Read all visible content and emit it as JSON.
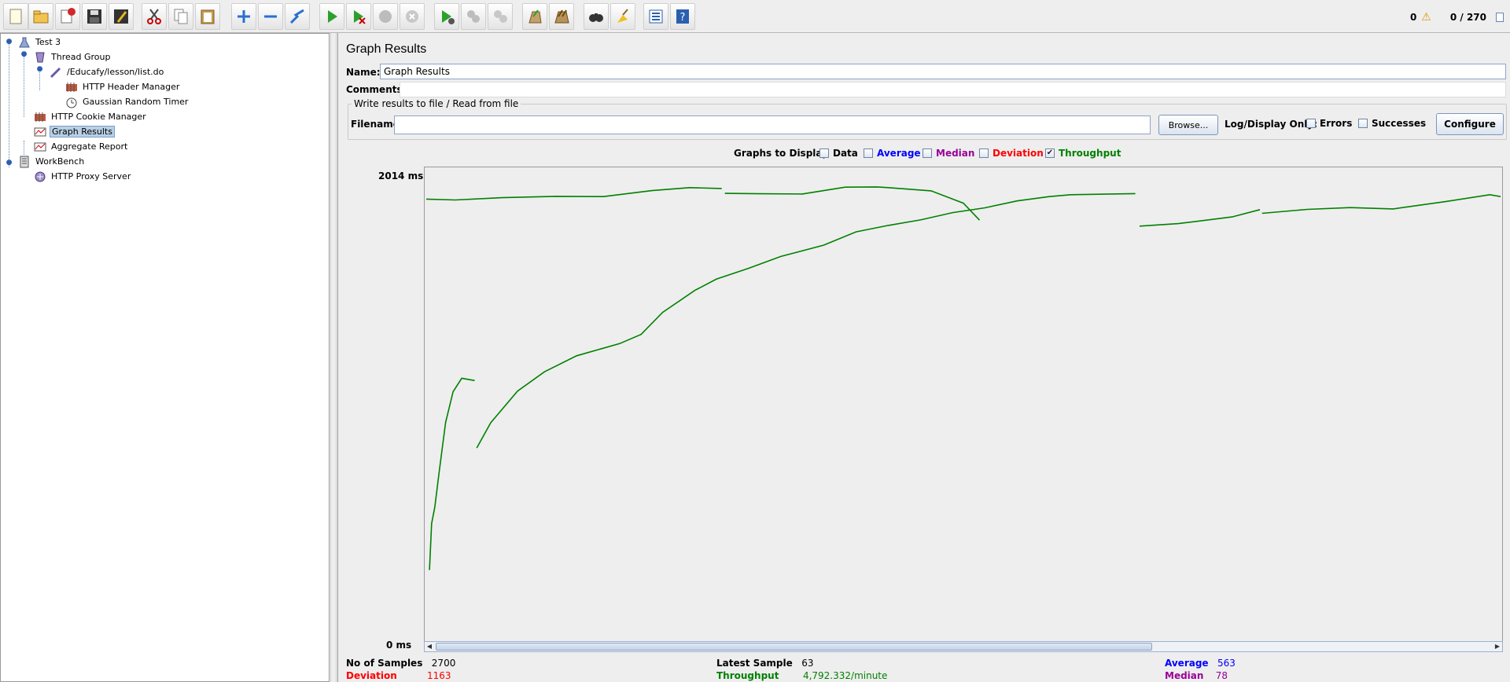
{
  "toolbar": {
    "buttons": [
      "new-icon",
      "open-icon",
      "close-icon",
      "save-icon",
      "save-as-icon",
      "cut-icon",
      "copy-icon",
      "paste-icon",
      "expand-icon",
      "collapse-icon",
      "toggle-icon",
      "start-icon",
      "start-no-timers-icon",
      "stop-icon",
      "shutdown-icon",
      "remote-start-icon",
      "remote-stop-icon",
      "remote-shutdown-icon",
      "clear-icon",
      "clear-all-icon",
      "search-icon",
      "reset-search-icon",
      "function-helper-icon",
      "help-icon"
    ],
    "warning_count": "0",
    "threads": "0 / 270"
  },
  "tree": {
    "items": [
      {
        "label": "Test 3",
        "icon": "test-plan-icon"
      },
      {
        "label": "Thread Group",
        "icon": "thread-group-icon"
      },
      {
        "label": "/Educafy/lesson/list.do",
        "icon": "http-sampler-icon"
      },
      {
        "label": "HTTP Header Manager",
        "icon": "header-manager-icon"
      },
      {
        "label": "Gaussian Random Timer",
        "icon": "timer-icon"
      },
      {
        "label": "HTTP Cookie Manager",
        "icon": "cookie-manager-icon"
      },
      {
        "label": "Graph Results",
        "icon": "graph-icon"
      },
      {
        "label": "Aggregate Report",
        "icon": "report-icon"
      },
      {
        "label": "WorkBench",
        "icon": "workbench-icon"
      },
      {
        "label": "HTTP Proxy Server",
        "icon": "proxy-icon"
      }
    ]
  },
  "panel": {
    "title": "Graph Results",
    "name_label": "Name:",
    "name_value": "Graph Results",
    "comments_label": "Comments:",
    "comments_value": "",
    "file_group_title": "Write results to file / Read from file",
    "filename_label": "Filename",
    "filename_value": "",
    "browse_label": "Browse...",
    "log_display_label": "Log/Display Only:",
    "errors_label": "Errors",
    "successes_label": "Successes",
    "configure_label": "Configure"
  },
  "graphs_to_display": {
    "label": "Graphs to Display",
    "options": [
      {
        "label": "Data",
        "checked": false,
        "color": "#000000"
      },
      {
        "label": "Average",
        "checked": false,
        "color": "#0000ff"
      },
      {
        "label": "Median",
        "checked": false,
        "color": "#990099"
      },
      {
        "label": "Deviation",
        "checked": false,
        "color": "#ff0000"
      },
      {
        "label": "Throughput",
        "checked": true,
        "color": "#008000"
      }
    ]
  },
  "chart_data": {
    "type": "line",
    "y_max_label": "2014  ms",
    "y_min_label": "0  ms",
    "ylim": [
      0,
      2014
    ],
    "color": "#008000",
    "series": [
      {
        "values": [
          [
            0,
            1910
          ],
          [
            0.027,
            1906
          ],
          [
            0.07,
            1916
          ],
          [
            0.12,
            1922
          ],
          [
            0.165,
            1921
          ],
          [
            0.21,
            1947
          ],
          [
            0.245,
            1960
          ],
          [
            0.275,
            1956
          ]
        ]
      },
      {
        "values": [
          [
            0.278,
            1935
          ],
          [
            0.31,
            1933
          ],
          [
            0.35,
            1932
          ],
          [
            0.39,
            1962
          ],
          [
            0.42,
            1963
          ],
          [
            0.43,
            1960
          ],
          [
            0.47,
            1946
          ],
          [
            0.5,
            1892
          ],
          [
            0.515,
            1818
          ]
        ]
      },
      {
        "values": [
          [
            0.003,
            293
          ],
          [
            0.005,
            495
          ],
          [
            0.008,
            568
          ],
          [
            0.012,
            720
          ],
          [
            0.018,
            936
          ],
          [
            0.025,
            1070
          ],
          [
            0.033,
            1129
          ],
          [
            0.045,
            1119
          ]
        ]
      },
      {
        "values": [
          [
            0.047,
            825
          ],
          [
            0.06,
            935
          ],
          [
            0.085,
            1073
          ],
          [
            0.11,
            1157
          ],
          [
            0.14,
            1227
          ],
          [
            0.18,
            1280
          ],
          [
            0.2,
            1320
          ],
          [
            0.22,
            1416
          ],
          [
            0.25,
            1512
          ],
          [
            0.27,
            1561
          ],
          [
            0.3,
            1608
          ],
          [
            0.33,
            1660
          ],
          [
            0.37,
            1709
          ],
          [
            0.4,
            1767
          ],
          [
            0.43,
            1795
          ],
          [
            0.46,
            1819
          ],
          [
            0.49,
            1851
          ],
          [
            0.52,
            1872
          ],
          [
            0.55,
            1902
          ],
          [
            0.58,
            1921
          ],
          [
            0.6,
            1929
          ],
          [
            0.66,
            1934
          ]
        ]
      },
      {
        "values": [
          [
            0.664,
            1792
          ],
          [
            0.7,
            1803
          ],
          [
            0.75,
            1832
          ],
          [
            0.776,
            1864
          ]
        ]
      },
      {
        "values": [
          [
            0.778,
            1848
          ],
          [
            0.82,
            1865
          ],
          [
            0.86,
            1873
          ],
          [
            0.9,
            1867
          ],
          [
            0.95,
            1900
          ],
          [
            0.99,
            1929
          ],
          [
            1.0,
            1921
          ]
        ]
      }
    ]
  },
  "stats": {
    "samples_label": "No of Samples",
    "samples_value": "2700",
    "latest_label": "Latest Sample",
    "latest_value": "63",
    "average_label": "Average",
    "average_value": "563",
    "deviation_label": "Deviation",
    "deviation_value": "1163",
    "throughput_label": "Throughput",
    "throughput_value": "4,792.332/minute",
    "median_label": "Median",
    "median_value": "78"
  }
}
